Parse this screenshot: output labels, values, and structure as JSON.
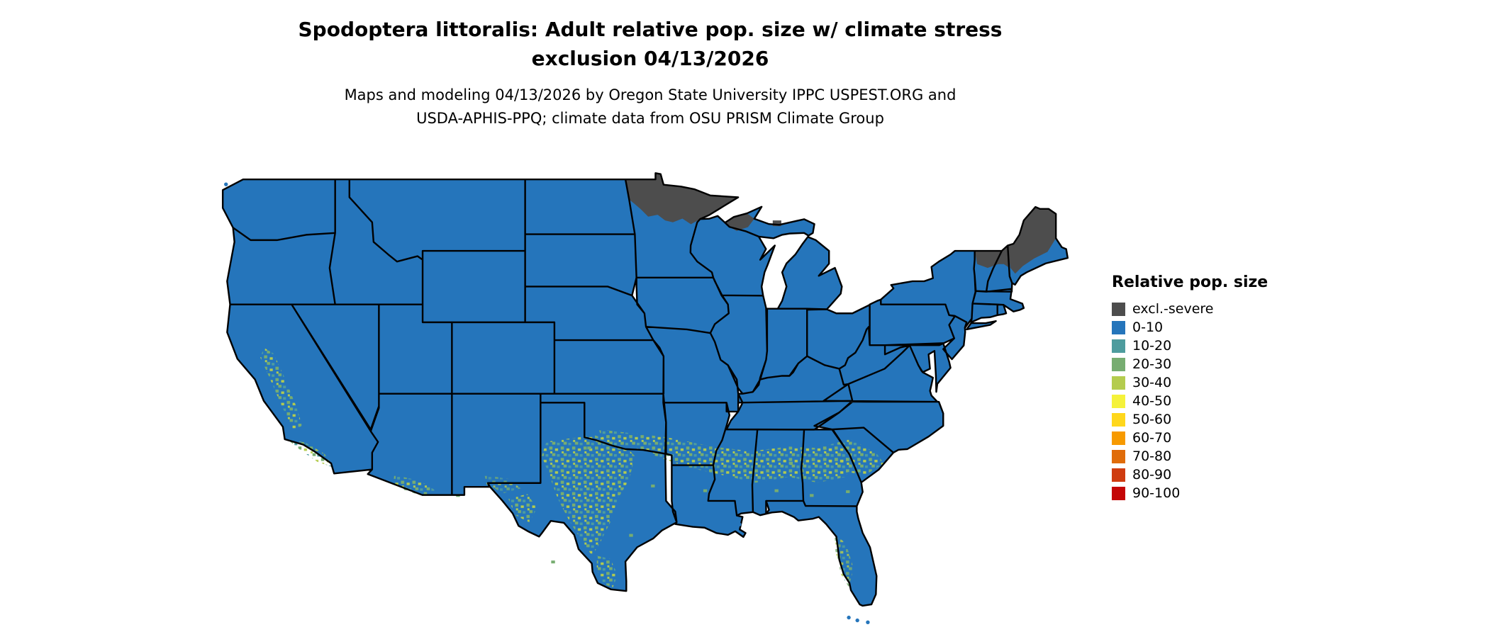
{
  "title": {
    "line1": "Spodoptera littoralis: Adult relative pop. size w/ climate stress",
    "line2": "exclusion 04/13/2026"
  },
  "subtitle": {
    "line1": "Maps and modeling 04/13/2026 by Oregon State University IPPC USPEST.ORG and",
    "line2": "USDA-APHIS-PPQ; climate data from OSU PRISM Climate Group"
  },
  "legend": {
    "title": "Relative pop. size",
    "items": [
      {
        "label": "excl.-severe",
        "color": "#4d4d4d"
      },
      {
        "label": "0-10",
        "color": "#2575bb"
      },
      {
        "label": "10-20",
        "color": "#4e9c9e"
      },
      {
        "label": "20-30",
        "color": "#77ad71"
      },
      {
        "label": "30-40",
        "color": "#b4cc4e"
      },
      {
        "label": "40-50",
        "color": "#f5f23a"
      },
      {
        "label": "50-60",
        "color": "#ffd71c"
      },
      {
        "label": "60-70",
        "color": "#f79a00"
      },
      {
        "label": "70-80",
        "color": "#e06c0a"
      },
      {
        "label": "80-90",
        "color": "#cf3c10"
      },
      {
        "label": "90-100",
        "color": "#c40606"
      }
    ]
  },
  "map": {
    "region": "Contiguous United States with state boundaries",
    "exclusion_regions": [
      "northern Minnesota",
      "northern Wisconsin and western Upper Michigan",
      "interior Maine and northern New Hampshire/Vermont"
    ],
    "elevated_population_regions": [
      "central and southern Texas",
      "southern Oklahoma / Red River belt",
      "Gulf Coast states belt (Arkansas, Louisiana, Mississippi, Alabama, Georgia)",
      "coastal South Carolina and Georgia",
      "central Florida peninsula",
      "California Central Valley and southern coastal California",
      "southern Arizona and southern New Mexico"
    ],
    "dominant_class": "0-10"
  }
}
